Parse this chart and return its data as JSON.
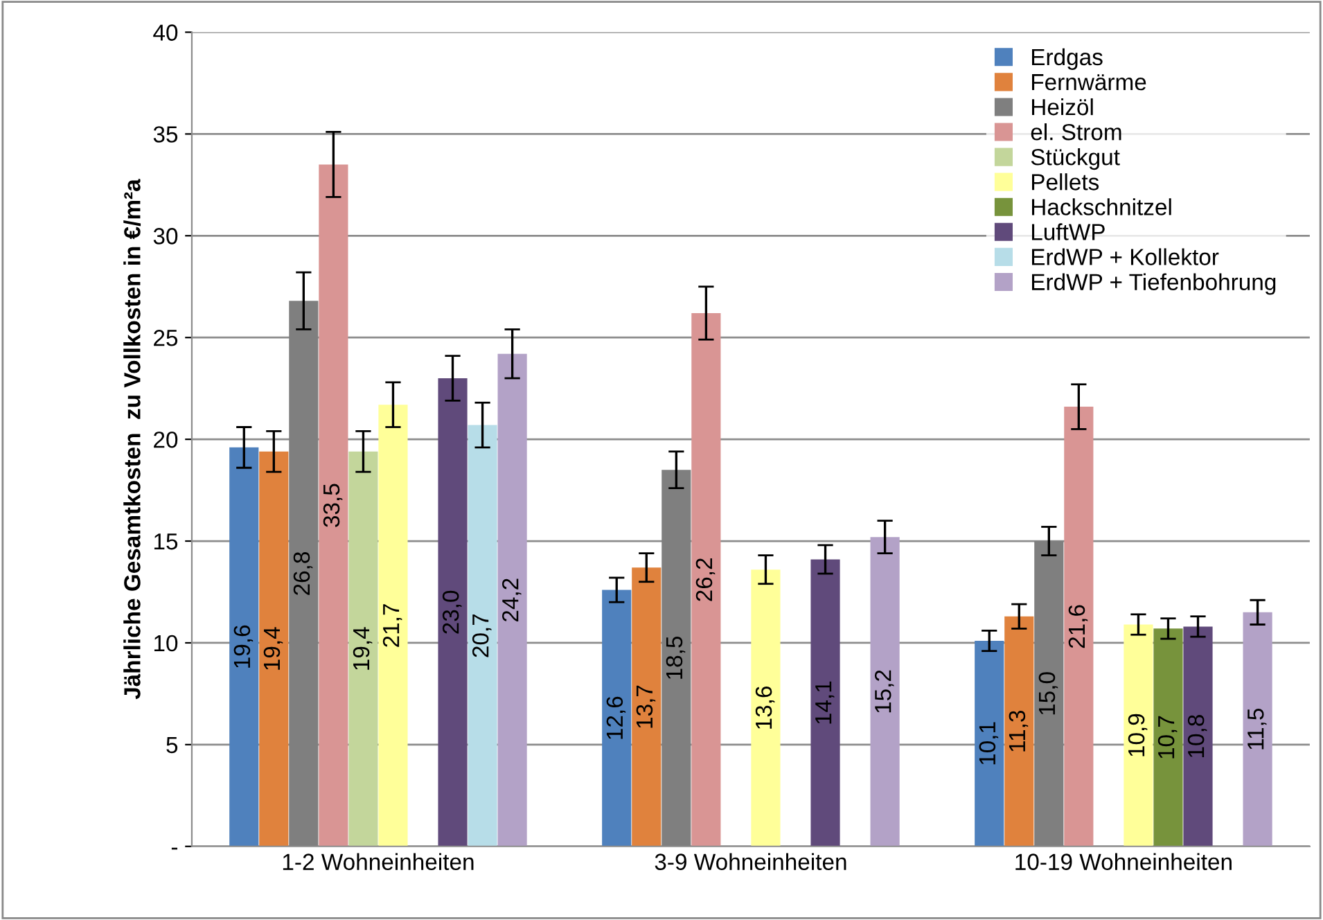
{
  "chart_data": {
    "type": "bar",
    "ylabel": "Jährliche Gesamtkosten  zu Vollkosten in €/m²a",
    "categories": [
      "1-2 Wohneinheiten",
      "3-9 Wohneinheiten",
      "10-19 Wohneinheiten"
    ],
    "ylim": [
      0,
      40
    ],
    "yticks": [
      {
        "value": 0,
        "label": "-"
      },
      5,
      10,
      15,
      20,
      25,
      30,
      35,
      40
    ],
    "grid": "y",
    "legend": "top right",
    "series": [
      {
        "name": "Erdgas",
        "color": "#4f81bd",
        "values": [
          19.6,
          12.6,
          10.1
        ],
        "errors": [
          1.0,
          0.6,
          0.5
        ],
        "value_labels": [
          "19,6",
          "12,6",
          "10,1"
        ]
      },
      {
        "name": "Fernwärme",
        "color": "#e0823d",
        "values": [
          19.4,
          13.7,
          11.3
        ],
        "errors": [
          1.0,
          0.7,
          0.6
        ],
        "value_labels": [
          "19,4",
          "13,7",
          "11,3"
        ]
      },
      {
        "name": "Heizöl",
        "color": "#7f7f7f",
        "values": [
          26.8,
          18.5,
          15.0
        ],
        "errors": [
          1.4,
          0.9,
          0.7
        ],
        "value_labels": [
          "26,8",
          "18,5",
          "15,0"
        ]
      },
      {
        "name": "el. Strom",
        "color": "#d99594",
        "values": [
          33.5,
          26.2,
          21.6
        ],
        "errors": [
          1.6,
          1.3,
          1.1
        ],
        "value_labels": [
          "33,5",
          "26,2",
          "21,6"
        ]
      },
      {
        "name": "Stückgut",
        "color": "#c3d69b",
        "values": [
          19.4,
          null,
          null
        ],
        "errors": [
          1.0,
          null,
          null
        ],
        "value_labels": [
          "19,4",
          null,
          null
        ]
      },
      {
        "name": "Pellets",
        "color": "#ffff99",
        "values": [
          21.7,
          13.6,
          10.9
        ],
        "errors": [
          1.1,
          0.7,
          0.5
        ],
        "value_labels": [
          "21,7",
          "13,6",
          "10,9"
        ]
      },
      {
        "name": "Hackschnitzel",
        "color": "#77933c",
        "values": [
          null,
          null,
          10.7
        ],
        "errors": [
          null,
          null,
          0.5
        ],
        "value_labels": [
          null,
          null,
          "10,7"
        ]
      },
      {
        "name": "LuftWP",
        "color": "#604a7b",
        "values": [
          23.0,
          14.1,
          10.8
        ],
        "errors": [
          1.1,
          0.7,
          0.5
        ],
        "value_labels": [
          "23,0",
          "14,1",
          "10,8"
        ]
      },
      {
        "name": "ErdWP + Kollektor",
        "color": "#b7dde8",
        "values": [
          20.7,
          null,
          null
        ],
        "errors": [
          1.1,
          null,
          null
        ],
        "value_labels": [
          "20,7",
          null,
          null
        ]
      },
      {
        "name": "ErdWP + Tiefenbohrung",
        "color": "#b3a2c7",
        "values": [
          24.2,
          15.2,
          11.5
        ],
        "errors": [
          1.2,
          0.8,
          0.6
        ],
        "value_labels": [
          "24,2",
          "15,2",
          "11,5"
        ]
      }
    ]
  }
}
